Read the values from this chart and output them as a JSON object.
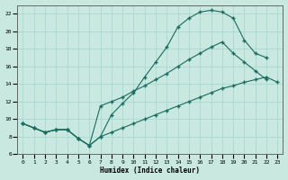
{
  "xlabel": "Humidex (Indice chaleur)",
  "background_color": "#c8e8e0",
  "grid_color": "#a8d8d0",
  "line_color": "#1a6b60",
  "xlim": [
    -0.5,
    23.5
  ],
  "ylim": [
    6,
    23
  ],
  "xticks": [
    0,
    1,
    2,
    3,
    4,
    5,
    6,
    7,
    8,
    9,
    10,
    11,
    12,
    13,
    14,
    15,
    16,
    17,
    18,
    19,
    20,
    21,
    22,
    23
  ],
  "yticks": [
    6,
    8,
    10,
    12,
    14,
    16,
    18,
    20,
    22
  ],
  "line1_x": [
    0,
    1,
    2,
    3,
    4,
    5,
    6,
    7,
    8,
    9,
    10,
    11,
    12,
    13,
    14,
    15,
    16,
    17,
    18,
    19,
    20,
    21,
    22
  ],
  "line1_y": [
    9.5,
    9.0,
    8.5,
    8.8,
    8.8,
    7.8,
    7.0,
    8.0,
    10.5,
    11.8,
    13.0,
    14.8,
    16.5,
    18.2,
    20.5,
    21.5,
    22.2,
    22.4,
    22.2,
    21.5,
    19.0,
    17.5,
    17.0
  ],
  "line2_x": [
    0,
    1,
    2,
    3,
    4,
    5,
    6,
    7,
    8,
    9,
    10,
    11,
    12,
    13,
    14,
    15,
    16,
    17,
    18,
    19,
    20,
    21,
    22
  ],
  "line2_y": [
    9.5,
    9.0,
    8.5,
    8.8,
    8.8,
    7.8,
    7.0,
    11.5,
    12.0,
    12.5,
    13.2,
    13.8,
    14.5,
    15.2,
    16.0,
    16.8,
    17.5,
    18.2,
    18.8,
    17.5,
    16.5,
    15.5,
    14.5
  ],
  "line3_x": [
    0,
    1,
    2,
    3,
    4,
    5,
    6,
    7,
    8,
    9,
    10,
    11,
    12,
    13,
    14,
    15,
    16,
    17,
    18,
    19,
    20,
    21,
    22,
    23
  ],
  "line3_y": [
    9.5,
    9.0,
    8.5,
    8.8,
    8.8,
    7.8,
    7.0,
    8.0,
    8.5,
    9.0,
    9.5,
    10.0,
    10.5,
    11.0,
    11.5,
    12.0,
    12.5,
    13.0,
    13.5,
    13.8,
    14.2,
    14.5,
    14.8,
    14.2
  ]
}
